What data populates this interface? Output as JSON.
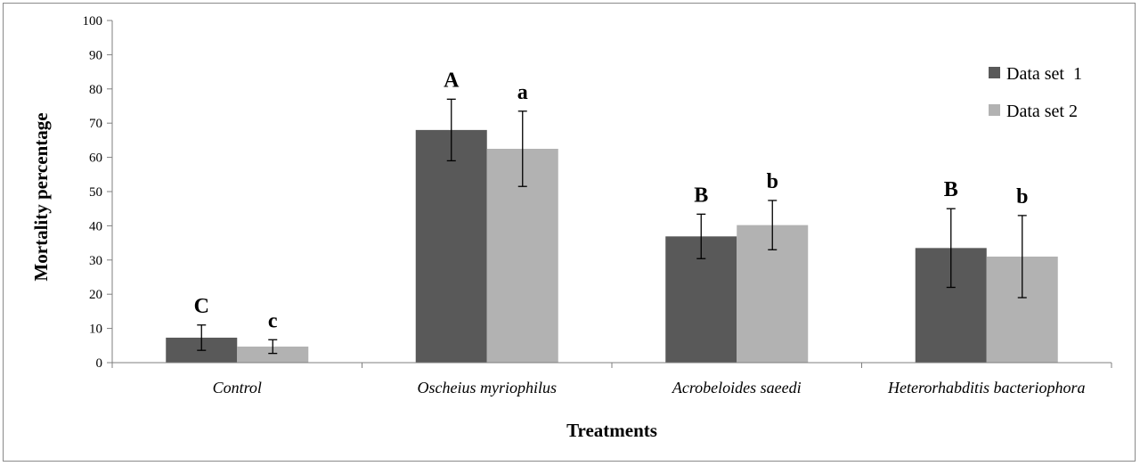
{
  "chart_data": {
    "type": "bar",
    "title": "",
    "xlabel": "Treatments",
    "ylabel": "Mortality percentage",
    "ylim": [
      0,
      100
    ],
    "yticks": [
      0,
      10,
      20,
      30,
      40,
      50,
      60,
      70,
      80,
      90,
      100
    ],
    "categories": [
      "Control",
      "Oscheius myriophilus",
      "Acrobeloides saeedi",
      "Heterorhabditis bacteriophora"
    ],
    "series": [
      {
        "name": "Data set  1",
        "color": "#595959",
        "values": [
          7.3,
          68,
          36.9,
          33.5
        ],
        "errors": [
          3.7,
          9,
          6.5,
          11.5
        ],
        "significance_letters": [
          "C",
          "A",
          "B",
          "B"
        ]
      },
      {
        "name": "Data set 2",
        "color": "#b2b2b2",
        "values": [
          4.7,
          62.5,
          40.2,
          31
        ],
        "errors": [
          2,
          11,
          7.2,
          12
        ],
        "significance_letters": [
          "c",
          "a",
          "b",
          "b"
        ]
      }
    ],
    "grid": false,
    "legend_position": "top-right"
  }
}
